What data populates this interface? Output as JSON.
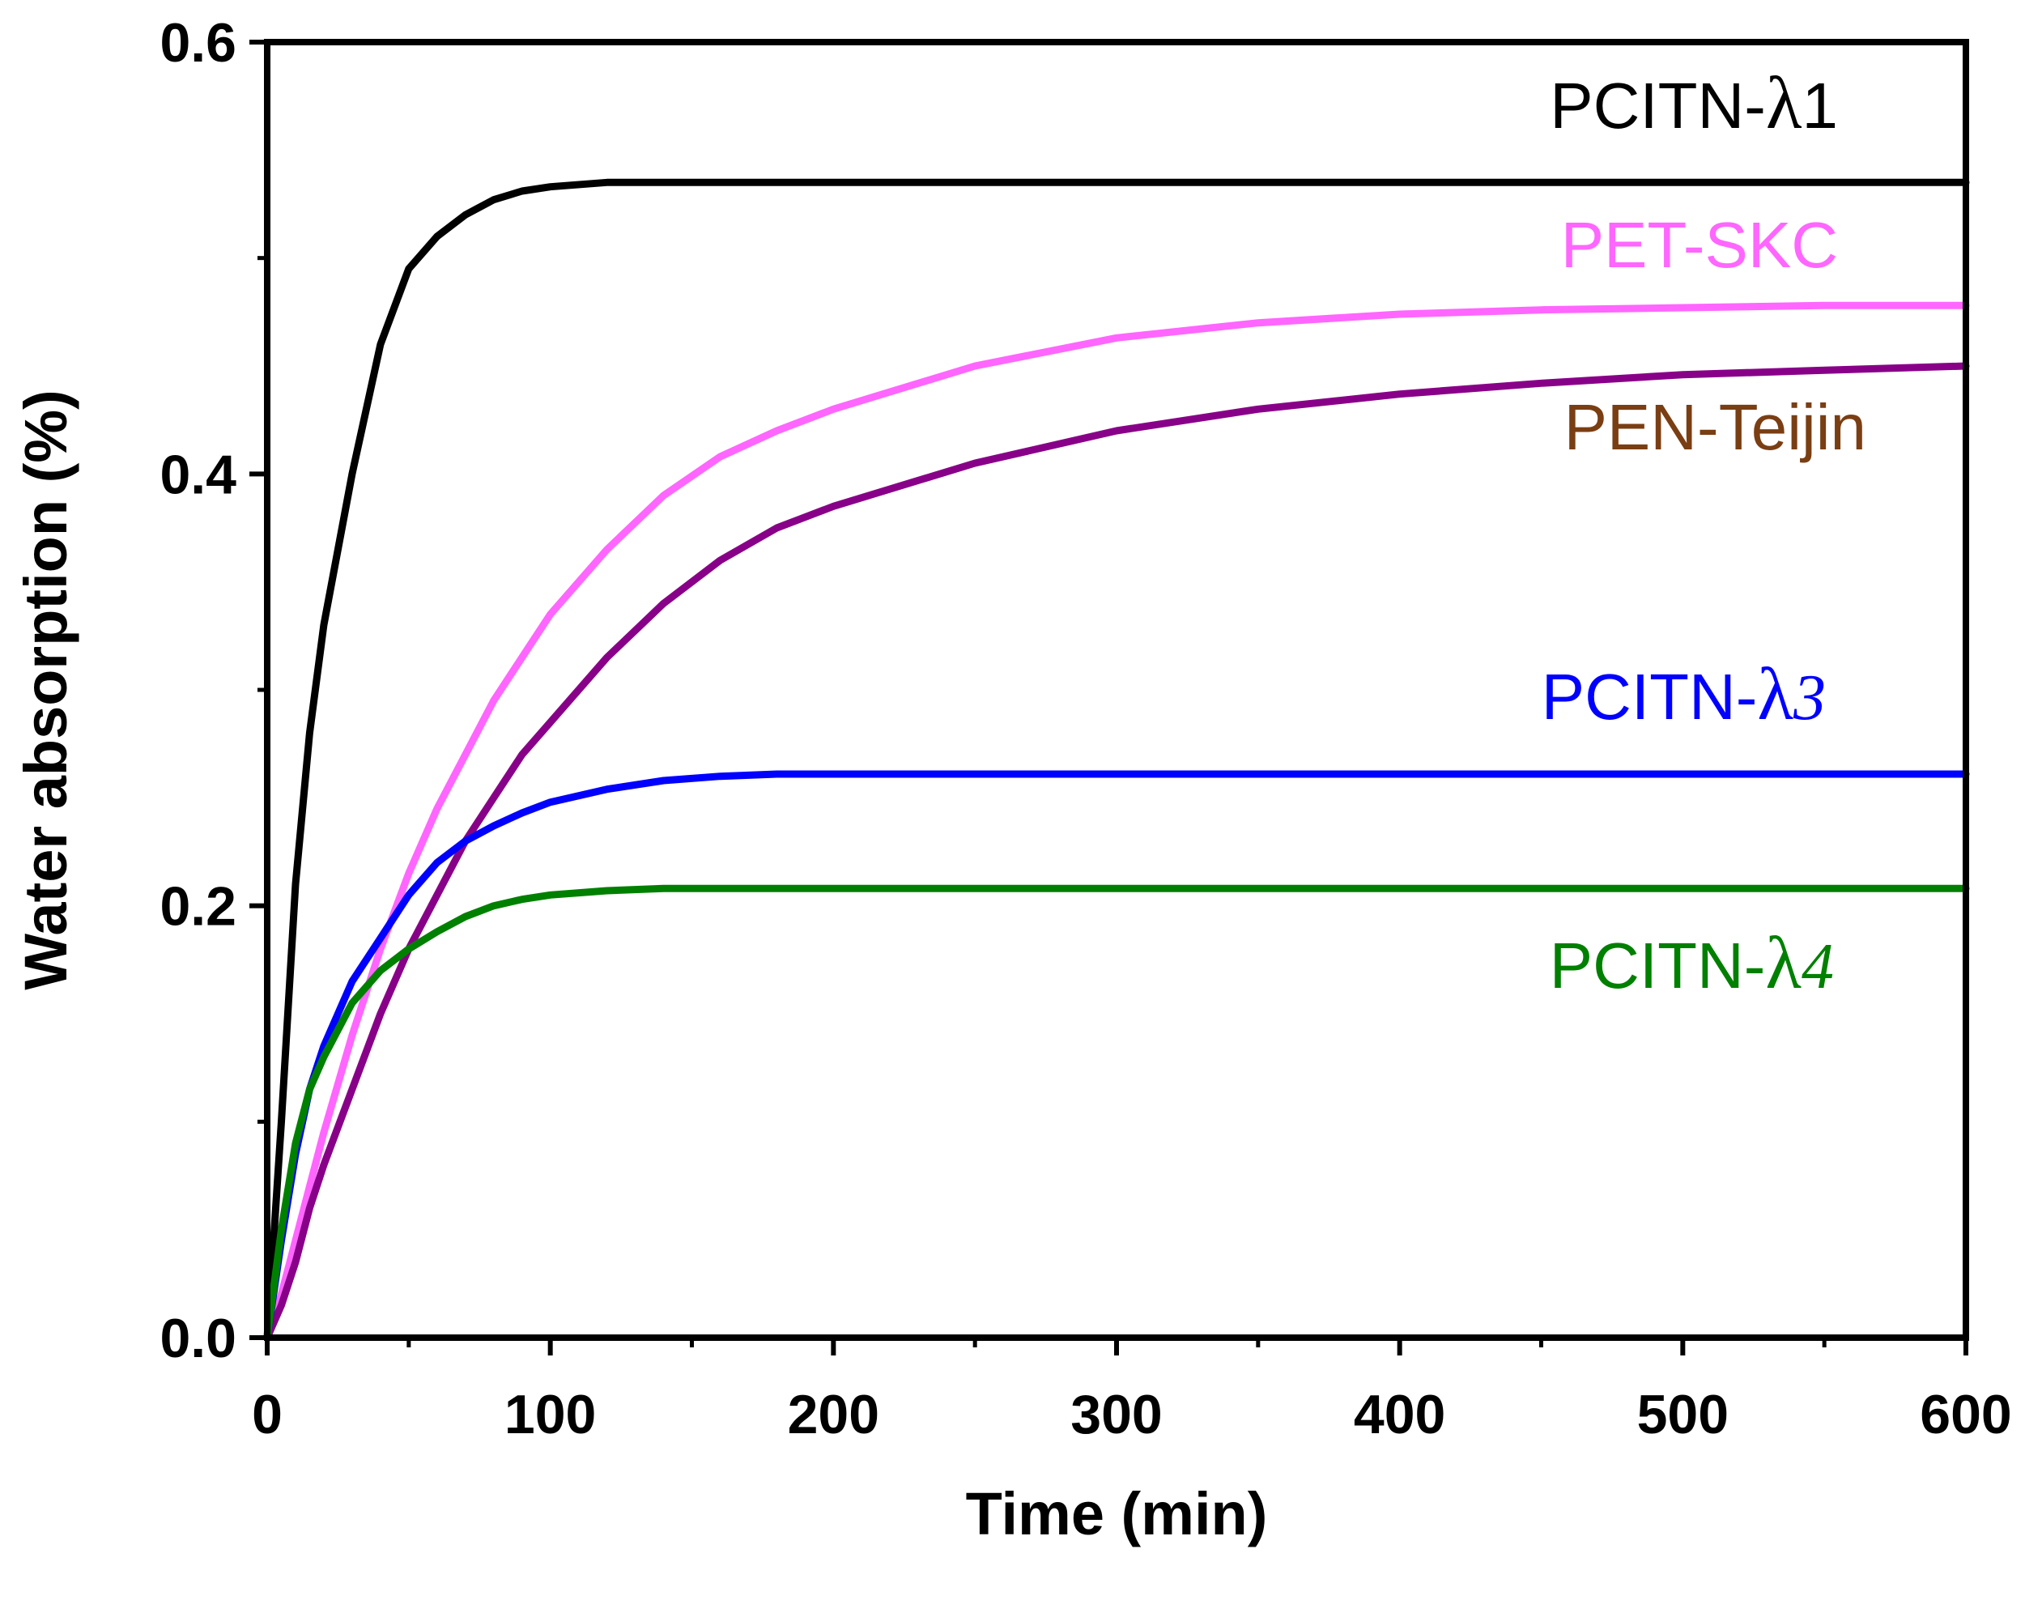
{
  "chart_data": {
    "type": "line",
    "title": "",
    "xlabel": "Time (min)",
    "ylabel": "Water absorption (%)",
    "xlim": [
      0,
      600
    ],
    "ylim": [
      0,
      0.6
    ],
    "x_ticks": [
      "0",
      "100",
      "200",
      "300",
      "400",
      "500",
      "600"
    ],
    "y_ticks": [
      "0.0",
      "0.2",
      "0.4",
      "0.6"
    ],
    "x": [
      0,
      5,
      10,
      15,
      20,
      30,
      40,
      50,
      60,
      70,
      80,
      90,
      100,
      120,
      140,
      160,
      180,
      200,
      250,
      300,
      350,
      400,
      450,
      500,
      550,
      600
    ],
    "series": [
      {
        "name": "PCITN-λ1",
        "label_prefix": "PCITN-",
        "label_greek": "λ",
        "label_suffix": "1",
        "color": "#000000",
        "values": [
          0,
          0.1,
          0.21,
          0.28,
          0.33,
          0.4,
          0.46,
          0.495,
          0.51,
          0.52,
          0.527,
          0.531,
          0.533,
          0.535,
          0.535,
          0.535,
          0.535,
          0.535,
          0.535,
          0.535,
          0.535,
          0.535,
          0.535,
          0.535,
          0.535,
          0.535
        ]
      },
      {
        "name": "PET-SKC",
        "label_prefix": "PET-SKC",
        "label_greek": "",
        "label_suffix": "",
        "color": "#ff66ff",
        "values": [
          0,
          0.02,
          0.045,
          0.07,
          0.095,
          0.14,
          0.18,
          0.215,
          0.245,
          0.27,
          0.295,
          0.315,
          0.335,
          0.365,
          0.39,
          0.408,
          0.42,
          0.43,
          0.45,
          0.463,
          0.47,
          0.474,
          0.476,
          0.477,
          0.478,
          0.478
        ]
      },
      {
        "name": "PEN-Teijin",
        "label_prefix": "PEN-Teijin",
        "label_greek": "",
        "label_suffix": "",
        "color": "#880088",
        "label_color": "#7a3e13",
        "values": [
          0,
          0.015,
          0.035,
          0.06,
          0.08,
          0.115,
          0.15,
          0.18,
          0.205,
          0.23,
          0.25,
          0.27,
          0.285,
          0.315,
          0.34,
          0.36,
          0.375,
          0.385,
          0.405,
          0.42,
          0.43,
          0.437,
          0.442,
          0.446,
          0.448,
          0.45
        ]
      },
      {
        "name": "PCITN-λ3",
        "label_prefix": "PCITN-",
        "label_greek": "λ",
        "label_suffix": "3",
        "color": "#0000ff",
        "values": [
          0,
          0.045,
          0.085,
          0.115,
          0.135,
          0.165,
          0.185,
          0.205,
          0.22,
          0.23,
          0.237,
          0.243,
          0.248,
          0.254,
          0.258,
          0.26,
          0.261,
          0.261,
          0.261,
          0.261,
          0.261,
          0.261,
          0.261,
          0.261,
          0.261,
          0.261
        ]
      },
      {
        "name": "PCITN-λ4",
        "label_prefix": "PCITN-",
        "label_greek": "λ",
        "label_suffix": "4",
        "color": "#008000",
        "values": [
          0,
          0.05,
          0.09,
          0.115,
          0.13,
          0.155,
          0.17,
          0.18,
          0.188,
          0.195,
          0.2,
          0.203,
          0.205,
          0.207,
          0.208,
          0.208,
          0.208,
          0.208,
          0.208,
          0.208,
          0.208,
          0.208,
          0.208,
          0.208,
          0.208,
          0.208
        ]
      }
    ]
  }
}
